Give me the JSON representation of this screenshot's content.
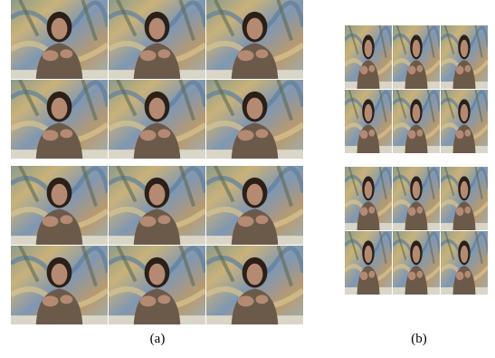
{
  "labels": {
    "a": "(a)",
    "b": "(b)"
  }
}
